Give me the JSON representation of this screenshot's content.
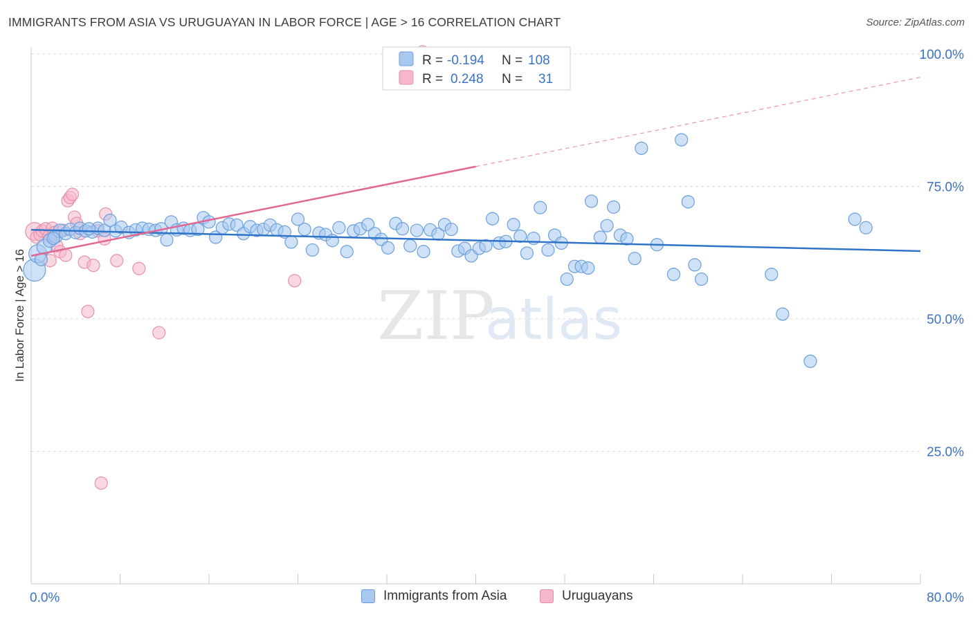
{
  "title": "IMMIGRANTS FROM ASIA VS URUGUAYAN IN LABOR FORCE | AGE > 16 CORRELATION CHART",
  "source": "Source: ZipAtlas.com",
  "watermark": {
    "zip": "ZIP",
    "atlas": "atlas"
  },
  "colors": {
    "blue_fill": "#a8c8f0",
    "blue_stroke": "#6a9fdc",
    "blue_line": "#2f74c8",
    "pink_fill": "#f5b8cb",
    "pink_stroke": "#e98fab",
    "pink_line": "#e2668f",
    "axis_text": "#3b72c4",
    "grid": "#d8d8d8"
  },
  "legend": {
    "rows": [
      {
        "r_label": "R =",
        "r_value": "-0.194",
        "n_label": "N =",
        "n_value": "108",
        "color": "blue"
      },
      {
        "r_label": "R =",
        "r_value": "0.248",
        "n_label": "N =",
        "n_value": "31",
        "color": "pink"
      }
    ]
  },
  "bottom_legend": [
    {
      "label": "Immigrants from Asia",
      "color": "blue"
    },
    {
      "label": "Uruguayans",
      "color": "pink"
    }
  ],
  "chart_data": {
    "type": "scatter",
    "title": "IMMIGRANTS FROM ASIA VS URUGUAYAN IN LABOR FORCE | AGE > 16 CORRELATION CHART",
    "xlabel": "",
    "ylabel": "In Labor Force | Age > 16",
    "xlim": [
      0,
      80
    ],
    "ylim": [
      0,
      105
    ],
    "x_tick_labels": [
      {
        "value": 0,
        "label": "0.0%"
      },
      {
        "value": 80,
        "label": "80.0%"
      }
    ],
    "y_tick_labels": [
      {
        "value": 100,
        "label": "100.0%"
      },
      {
        "value": 75,
        "label": "75.0%"
      },
      {
        "value": 50,
        "label": "50.0%"
      },
      {
        "value": 25,
        "label": "25.0%"
      }
    ],
    "x_minor_ticks": [
      0,
      8,
      16,
      24,
      32,
      40,
      48,
      56,
      64,
      72,
      80
    ],
    "grid": true,
    "legend_position": "top-center",
    "series": [
      {
        "name": "Immigrants from Asia",
        "color": "blue",
        "r": -0.194,
        "n": 108,
        "trend": {
          "x": [
            0,
            80
          ],
          "y": [
            66.8,
            62.8
          ],
          "dashed_from": null
        },
        "points": [
          [
            0.3,
            59.2,
            16
          ],
          [
            0.6,
            62.3,
            13
          ],
          [
            1.2,
            63.6,
            11
          ],
          [
            1.7,
            64.8,
            10
          ],
          [
            2.2,
            65.6,
            10
          ],
          [
            2.6,
            66.6,
            10
          ],
          [
            3.1,
            66.1,
            9
          ],
          [
            3.5,
            66.9,
            9
          ],
          [
            4.0,
            66.3,
            9
          ],
          [
            4.4,
            67.1,
            9
          ],
          [
            4.9,
            66.6,
            9
          ],
          [
            5.5,
            66.4,
            9
          ],
          [
            6.0,
            67.1,
            9
          ],
          [
            6.6,
            66.7,
            9
          ],
          [
            7.1,
            68.6,
            9
          ],
          [
            7.6,
            66.6,
            9
          ],
          [
            8.1,
            67.3,
            9
          ],
          [
            8.8,
            66.3,
            9
          ],
          [
            9.4,
            66.8,
            9
          ],
          [
            10.0,
            67.1,
            9
          ],
          [
            10.6,
            66.9,
            9
          ],
          [
            11.2,
            66.7,
            9
          ],
          [
            11.7,
            67.0,
            9
          ],
          [
            12.2,
            64.9,
            9
          ],
          [
            12.6,
            68.3,
            9
          ],
          [
            13.1,
            66.8,
            9
          ],
          [
            13.7,
            67.1,
            9
          ],
          [
            14.3,
            66.7,
            9
          ],
          [
            15.0,
            66.9,
            9
          ],
          [
            15.5,
            69.1,
            9
          ],
          [
            16.0,
            68.3,
            9
          ],
          [
            16.6,
            65.4,
            9
          ],
          [
            17.2,
            67.2,
            9
          ],
          [
            17.8,
            67.9,
            9
          ],
          [
            18.5,
            67.7,
            9
          ],
          [
            19.1,
            66.1,
            9
          ],
          [
            19.7,
            67.4,
            9
          ],
          [
            20.3,
            66.7,
            9
          ],
          [
            20.9,
            66.9,
            9
          ],
          [
            21.5,
            67.7,
            9
          ],
          [
            22.1,
            66.8,
            9
          ],
          [
            22.8,
            66.4,
            9
          ],
          [
            23.4,
            64.5,
            9
          ],
          [
            24.0,
            68.8,
            9
          ],
          [
            24.6,
            66.9,
            9
          ],
          [
            25.3,
            63.0,
            9
          ],
          [
            25.9,
            66.2,
            9
          ],
          [
            26.5,
            65.9,
            9
          ],
          [
            27.1,
            64.8,
            9
          ],
          [
            27.7,
            67.2,
            9
          ],
          [
            28.4,
            62.7,
            9
          ],
          [
            29.0,
            66.6,
            9
          ],
          [
            29.6,
            67.0,
            9
          ],
          [
            30.3,
            67.8,
            9
          ],
          [
            30.9,
            66.1,
            9
          ],
          [
            31.5,
            65.0,
            9
          ],
          [
            32.1,
            63.4,
            9
          ],
          [
            32.8,
            68.0,
            9
          ],
          [
            33.4,
            67.0,
            9
          ],
          [
            34.1,
            63.8,
            9
          ],
          [
            34.7,
            66.7,
            9
          ],
          [
            35.3,
            62.7,
            9
          ],
          [
            35.9,
            66.8,
            9
          ],
          [
            36.6,
            66.0,
            9
          ],
          [
            37.2,
            67.8,
            9
          ],
          [
            37.8,
            66.9,
            9
          ],
          [
            38.4,
            62.8,
            9
          ],
          [
            39.0,
            63.3,
            9
          ],
          [
            39.6,
            61.9,
            9
          ],
          [
            40.3,
            63.3,
            9
          ],
          [
            40.9,
            63.8,
            9
          ],
          [
            41.5,
            68.9,
            9
          ],
          [
            42.1,
            64.3,
            9
          ],
          [
            42.7,
            64.6,
            9
          ],
          [
            43.4,
            67.8,
            9
          ],
          [
            44.0,
            65.6,
            9
          ],
          [
            44.6,
            62.4,
            9
          ],
          [
            45.2,
            65.2,
            9
          ],
          [
            45.8,
            71.0,
            9
          ],
          [
            46.5,
            63.0,
            9
          ],
          [
            47.1,
            65.8,
            9
          ],
          [
            47.7,
            64.3,
            9
          ],
          [
            48.2,
            57.5,
            9
          ],
          [
            48.9,
            59.9,
            9
          ],
          [
            49.5,
            59.9,
            9
          ],
          [
            50.1,
            59.6,
            9
          ],
          [
            50.4,
            72.2,
            9
          ],
          [
            51.2,
            65.4,
            9
          ],
          [
            51.8,
            67.6,
            9
          ],
          [
            52.4,
            71.1,
            9
          ],
          [
            53.0,
            65.8,
            9
          ],
          [
            53.6,
            65.1,
            9
          ],
          [
            54.3,
            61.4,
            9
          ],
          [
            54.9,
            82.2,
            9
          ],
          [
            56.3,
            64.0,
            9
          ],
          [
            57.8,
            58.4,
            9
          ],
          [
            58.5,
            83.8,
            9
          ],
          [
            59.1,
            72.1,
            9
          ],
          [
            59.7,
            60.2,
            9
          ],
          [
            60.3,
            57.5,
            9
          ],
          [
            66.6,
            58.4,
            9
          ],
          [
            67.6,
            50.9,
            9
          ],
          [
            70.1,
            42.0,
            9
          ],
          [
            74.1,
            68.8,
            9
          ],
          [
            75.1,
            67.2,
            9
          ],
          [
            0.9,
            61.2,
            9
          ],
          [
            2.0,
            65.2,
            9
          ],
          [
            5.2,
            67.0,
            9
          ]
        ]
      },
      {
        "name": "Uruguayans",
        "color": "pink",
        "r": 0.248,
        "n": 31,
        "trend": {
          "x": [
            0,
            80
          ],
          "y": [
            61.9,
            95.6
          ],
          "solid_until": 40
        },
        "points": [
          [
            0.3,
            66.5,
            13
          ],
          [
            0.5,
            65.4,
            9
          ],
          [
            0.8,
            65.9,
            9
          ],
          [
            1.0,
            66.6,
            9
          ],
          [
            1.3,
            67.0,
            9
          ],
          [
            1.6,
            65.6,
            9
          ],
          [
            1.9,
            67.1,
            9
          ],
          [
            2.1,
            66.3,
            9
          ],
          [
            2.3,
            63.8,
            9
          ],
          [
            2.6,
            62.7,
            9
          ],
          [
            2.9,
            66.7,
            9
          ],
          [
            3.1,
            62.0,
            9
          ],
          [
            3.3,
            72.3,
            9
          ],
          [
            3.5,
            72.9,
            9
          ],
          [
            3.7,
            73.5,
            9
          ],
          [
            3.9,
            69.2,
            9
          ],
          [
            4.1,
            68.0,
            9
          ],
          [
            4.4,
            66.1,
            9
          ],
          [
            4.8,
            60.7,
            9
          ],
          [
            5.1,
            51.4,
            9
          ],
          [
            5.6,
            60.1,
            9
          ],
          [
            6.0,
            66.6,
            9
          ],
          [
            6.7,
            69.8,
            9
          ],
          [
            6.3,
            19.0,
            9
          ],
          [
            6.6,
            65.1,
            9
          ],
          [
            7.7,
            61.0,
            9
          ],
          [
            9.7,
            59.5,
            9
          ],
          [
            11.5,
            47.4,
            9
          ],
          [
            23.7,
            57.2,
            9
          ],
          [
            35.2,
            100.4,
            9
          ],
          [
            1.7,
            61.0,
            9
          ]
        ]
      }
    ]
  }
}
